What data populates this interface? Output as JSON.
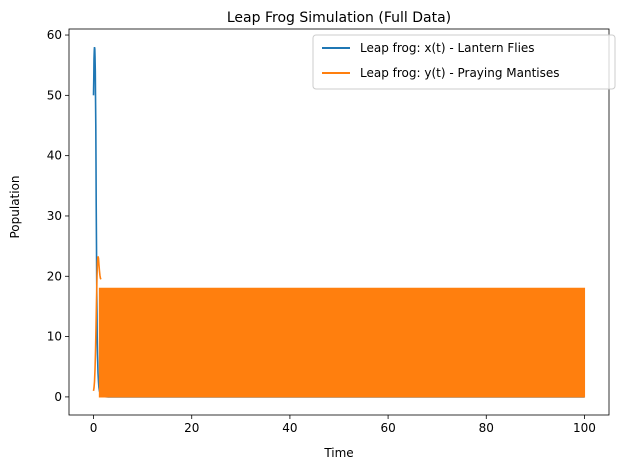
{
  "chart_data": {
    "type": "line",
    "title": "Leap Frog Simulation (Full Data)",
    "xlabel": "Time",
    "ylabel": "Population",
    "xlim": [
      -5,
      105
    ],
    "ylim": [
      -3,
      61
    ],
    "xticks": [
      0,
      20,
      40,
      60,
      80,
      100
    ],
    "yticks": [
      0,
      10,
      20,
      30,
      40,
      50,
      60
    ],
    "grid": false,
    "legend_position": "top-right",
    "series": [
      {
        "name": "Leap frog: x(t) - Lantern Flies",
        "color": "#1f77b4",
        "x": [
          0.0,
          0.05,
          0.1,
          0.15,
          0.2,
          0.25,
          0.3,
          0.35,
          0.4,
          0.45,
          0.5,
          0.55,
          0.6,
          0.65,
          0.7,
          0.75,
          0.8,
          0.9,
          1.0,
          1.1,
          1.2,
          1.4,
          1.6,
          2,
          3,
          5,
          10,
          20,
          40,
          60,
          80,
          100
        ],
        "y": [
          50,
          53,
          56,
          57.5,
          58,
          57.7,
          56.5,
          54,
          50,
          45,
          39,
          32,
          25,
          19,
          14,
          10,
          7,
          4,
          2.5,
          1.6,
          1.0,
          0.5,
          0.2,
          0.05,
          0,
          0,
          0,
          0,
          0,
          0,
          0,
          0
        ]
      },
      {
        "name": "Leap frog: y(t) - Praying Mantises",
        "color": "#ff7f0e",
        "x": [
          0.0,
          0.1,
          0.2,
          0.3,
          0.4,
          0.5,
          0.6,
          0.7,
          0.8,
          0.9,
          1.0,
          1.1,
          1.2,
          1.3,
          1.4,
          1.5
        ],
        "y": [
          1,
          1.5,
          2.5,
          4.5,
          7.5,
          11.5,
          16,
          20,
          22.5,
          23.3,
          23,
          22,
          21,
          20.2,
          19.7,
          19.5
        ],
        "band": {
          "x_start": 1.2,
          "x_end": 100,
          "y_low": 0,
          "y_high": 18
        }
      }
    ]
  }
}
